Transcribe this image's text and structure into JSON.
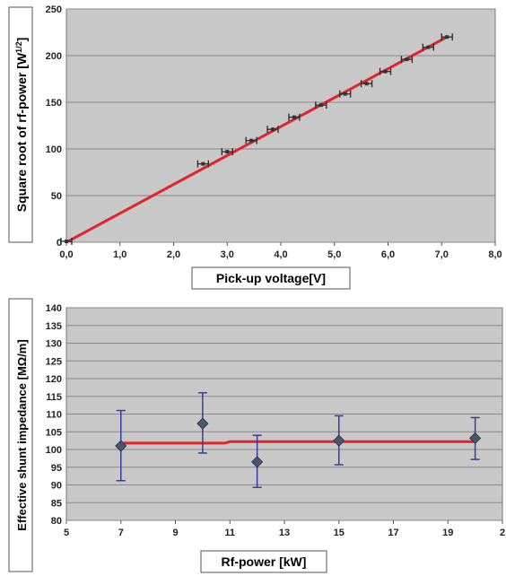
{
  "chart_data": [
    {
      "type": "scatter",
      "xlabel": "Pick-up voltage[V]",
      "ylabel": "Square root of rf-power [W",
      "ylabel_sup": "1/2",
      "ylabel_end": "]",
      "xlim": [
        0,
        8
      ],
      "ylim": [
        0,
        250
      ],
      "x_ticks": [
        "0,0",
        "1,0",
        "2,0",
        "3,0",
        "4,0",
        "5,0",
        "6,0",
        "7,0",
        "8,0"
      ],
      "y_ticks": [
        "0",
        "50",
        "100",
        "150",
        "200",
        "250"
      ],
      "grid": true,
      "points": [
        {
          "x": 0.0,
          "y": 1
        },
        {
          "x": 2.55,
          "y": 84
        },
        {
          "x": 3.0,
          "y": 97
        },
        {
          "x": 3.45,
          "y": 109
        },
        {
          "x": 3.85,
          "y": 121
        },
        {
          "x": 4.25,
          "y": 134
        },
        {
          "x": 4.75,
          "y": 147
        },
        {
          "x": 5.2,
          "y": 159
        },
        {
          "x": 5.6,
          "y": 170
        },
        {
          "x": 5.95,
          "y": 183
        },
        {
          "x": 6.35,
          "y": 196
        },
        {
          "x": 6.75,
          "y": 209
        },
        {
          "x": 7.1,
          "y": 220
        }
      ],
      "x_error": 0.1,
      "fit_line": {
        "x": [
          0.0,
          7.1
        ],
        "y": [
          0,
          220
        ]
      },
      "colors": {
        "plot_bg": "#c8c8c8",
        "grid": "#888888",
        "fit": "#e0242a",
        "marker": "#333333"
      }
    },
    {
      "type": "scatter",
      "xlabel": "Rf-power [kW]",
      "ylabel": "Effective shunt impedance [MΩ/m]",
      "xlim": [
        5,
        21
      ],
      "ylim": [
        80,
        140
      ],
      "x_ticks": [
        "5",
        "7",
        "9",
        "11",
        "13",
        "15",
        "17",
        "19",
        "2"
      ],
      "y_ticks": [
        "80",
        "85",
        "90",
        "95",
        "100",
        "105",
        "110",
        "115",
        "120",
        "125",
        "130",
        "135",
        "140"
      ],
      "grid": true,
      "points": [
        {
          "x": 7,
          "y": 101,
          "err_lo": 91.2,
          "err_hi": 111
        },
        {
          "x": 10,
          "y": 107.3,
          "err_lo": 99,
          "err_hi": 116
        },
        {
          "x": 12,
          "y": 96.5,
          "err_lo": 89.3,
          "err_hi": 104
        },
        {
          "x": 15,
          "y": 102.5,
          "err_lo": 95.7,
          "err_hi": 109.5
        },
        {
          "x": 20,
          "y": 103.2,
          "err_lo": 97.2,
          "err_hi": 109
        }
      ],
      "fit_line": {
        "x": [
          7,
          10.8,
          11,
          20
        ],
        "y": [
          101.8,
          101.8,
          102.2,
          102.2
        ]
      },
      "colors": {
        "plot_bg": "#c8c8c8",
        "grid": "#888888",
        "fit": "#e0242a",
        "marker": "#4a5570",
        "error_bar": "#3a3aa0"
      }
    }
  ]
}
